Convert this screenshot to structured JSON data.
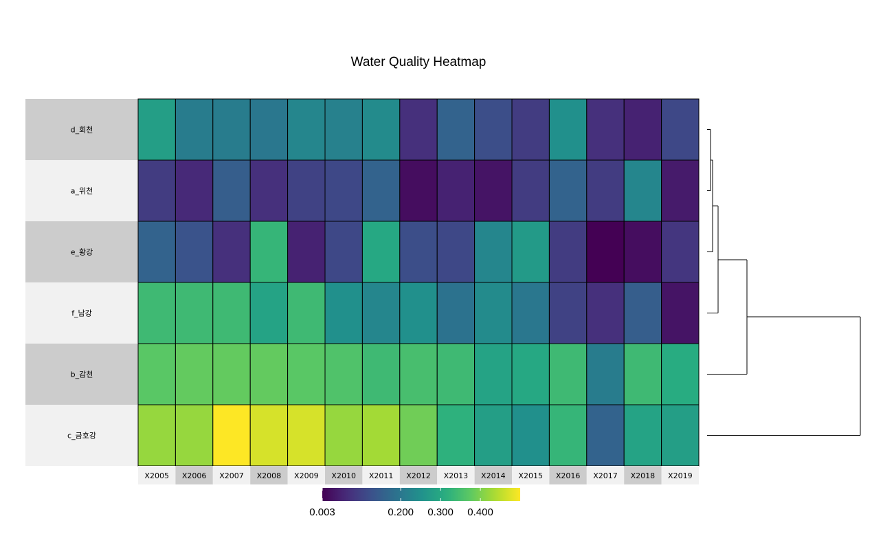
{
  "chart_data": {
    "type": "heatmap",
    "title": "Water Quality Heatmap",
    "rows": [
      "d_회천",
      "a_위천",
      "e_황강",
      "f_남강",
      "b_감천",
      "c_금호강"
    ],
    "columns": [
      "X2005",
      "X2006",
      "X2007",
      "X2008",
      "X2009",
      "X2010",
      "X2011",
      "X2012",
      "X2013",
      "X2014",
      "X2015",
      "X2016",
      "X2017",
      "X2018",
      "X2019"
    ],
    "values": [
      [
        0.28,
        0.21,
        0.21,
        0.2,
        0.23,
        0.22,
        0.24,
        0.07,
        0.16,
        0.12,
        0.09,
        0.25,
        0.07,
        0.05,
        0.11
      ],
      [
        0.09,
        0.06,
        0.15,
        0.07,
        0.1,
        0.11,
        0.16,
        0.02,
        0.05,
        0.03,
        0.09,
        0.16,
        0.09,
        0.23,
        0.04
      ],
      [
        0.16,
        0.13,
        0.07,
        0.33,
        0.05,
        0.11,
        0.3,
        0.12,
        0.11,
        0.23,
        0.27,
        0.09,
        0.003,
        0.02,
        0.08
      ],
      [
        0.34,
        0.34,
        0.34,
        0.29,
        0.34,
        0.25,
        0.23,
        0.25,
        0.19,
        0.24,
        0.2,
        0.1,
        0.07,
        0.15,
        0.03
      ],
      [
        0.37,
        0.38,
        0.38,
        0.38,
        0.37,
        0.36,
        0.34,
        0.35,
        0.34,
        0.29,
        0.3,
        0.34,
        0.21,
        0.34,
        0.31
      ],
      [
        0.42,
        0.42,
        0.5,
        0.47,
        0.47,
        0.42,
        0.43,
        0.39,
        0.32,
        0.28,
        0.25,
        0.33,
        0.16,
        0.29,
        0.28
      ]
    ],
    "colormap": "viridis",
    "legend": {
      "ticks": [
        "0.003",
        "0.200",
        "0.300",
        "0.400"
      ],
      "tick_values": [
        0.003,
        0.2,
        0.3,
        0.4
      ],
      "range": [
        0.003,
        0.5
      ],
      "placement": "bottom"
    },
    "dendrogram": "right"
  },
  "colors": {
    "label_bg_dark": "#cccccc",
    "label_bg_light": "#f1f1f1"
  }
}
